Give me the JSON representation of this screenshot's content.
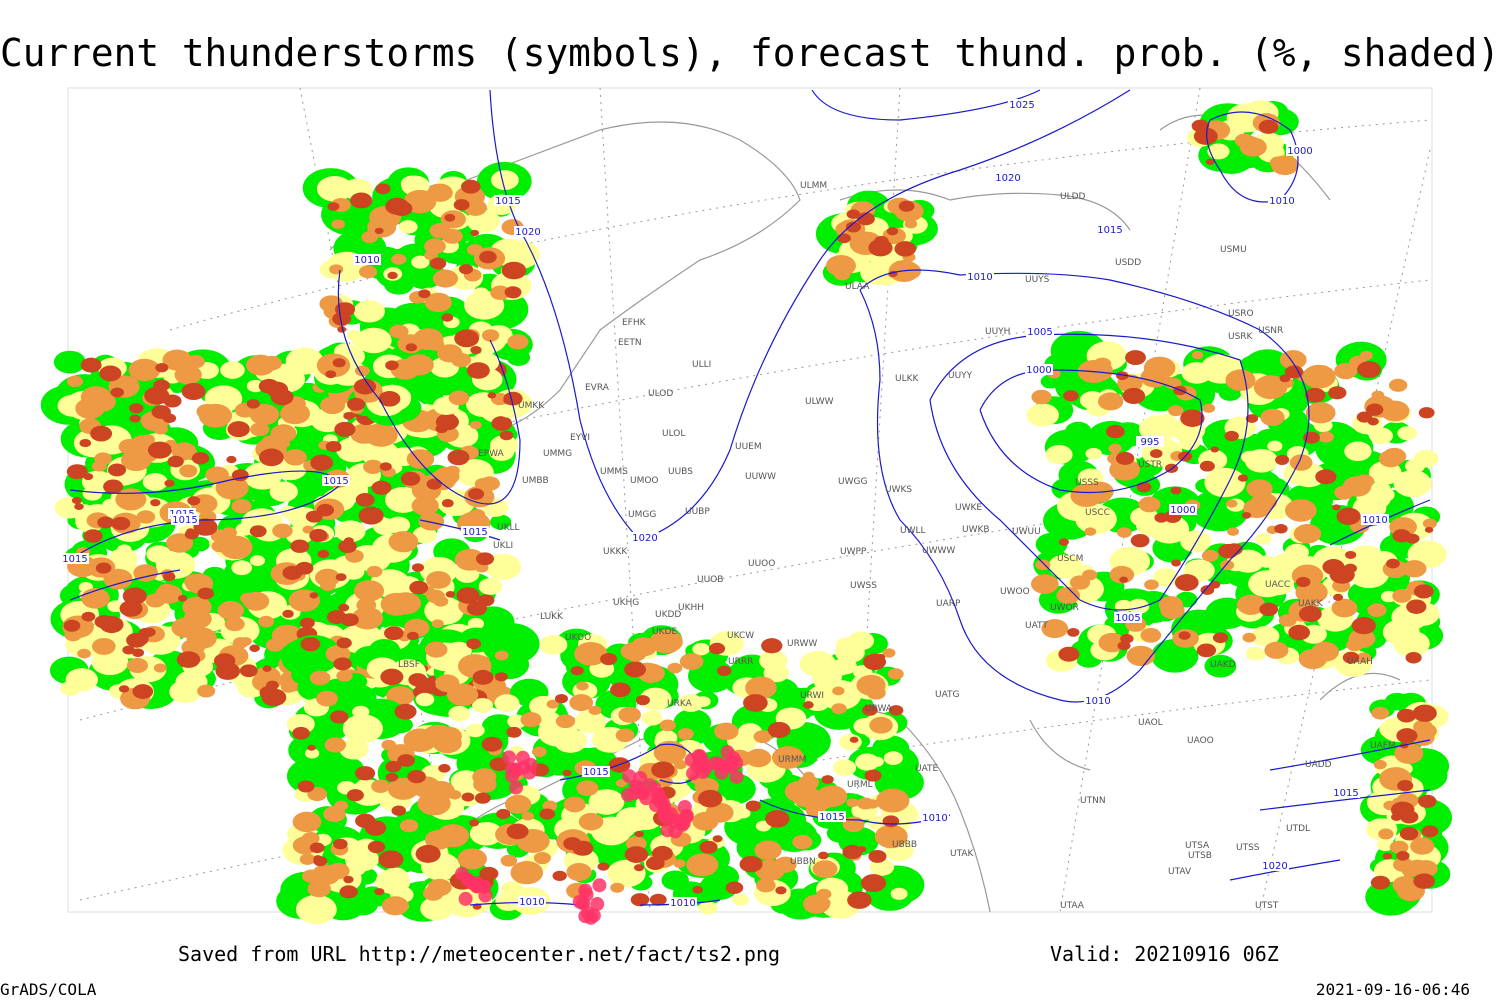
{
  "title": "Current thunderstorms (symbols), forecast thund. prob. (%, shaded)",
  "footer": {
    "saved": "Saved from URL http://meteocenter.net/fact/ts2.png",
    "valid": "Valid: 20210916 06Z",
    "software": "GrADS/COLA",
    "timestamp": "2021-09-16-06:46"
  },
  "stations": [
    "ULMM",
    "ULDD",
    "USDD",
    "USMU",
    "ULAA",
    "UUYS",
    "USRO",
    "USRK",
    "USNR",
    "UUYH",
    "EFHK",
    "EETN",
    "ULLI",
    "ULKK",
    "UUYY",
    "EVRA",
    "ULOD",
    "UMKK",
    "ULWW",
    "EYVI",
    "ULOL",
    "UUEM",
    "UMMG",
    "EPWA",
    "UMMS",
    "UMOO",
    "UUBS",
    "UUWW",
    "UWGG",
    "UWKS",
    "USSS",
    "USTR",
    "UMBB",
    "UWKE",
    "USCC",
    "UMGG",
    "UUBP",
    "UKLL",
    "UWKB",
    "UWUU",
    "UKLI",
    "UWLL",
    "UWWW",
    "UWPP",
    "USCM",
    "UKKK",
    "UUOO",
    "UUOB",
    "UWSS",
    "LUKK",
    "UKHH",
    "UKDD",
    "UKHG",
    "UKOO",
    "UKDE",
    "UKCW",
    "URWW",
    "UWOO",
    "UARP",
    "UWOR",
    "UATT",
    "UACC",
    "UAKK",
    "UAKD",
    "UAAH",
    "URRR",
    "LBSF",
    "URWI",
    "UATG",
    "URKA",
    "URWA",
    "UAOL",
    "UAOO",
    "UATE",
    "URMM",
    "UADD",
    "URML",
    "UTNN",
    "UAFM",
    "UTSA",
    "UTSB",
    "UTSS",
    "UTAV",
    "UTAK",
    "UBBN",
    "UBBB",
    "UTAA",
    "UTST",
    "UTDL"
  ],
  "isobar_labels": [
    "1025",
    "1020",
    "1015",
    "1015",
    "1020",
    "1010",
    "1010",
    "1005",
    "1000",
    "1000",
    "1010",
    "995",
    "1015",
    "1015",
    "1015",
    "1000",
    "1020",
    "1015",
    "1015",
    "1010",
    "1005",
    "1010",
    "1015",
    "1015",
    "1010",
    "1015",
    "1020",
    "1010",
    "1010"
  ]
}
